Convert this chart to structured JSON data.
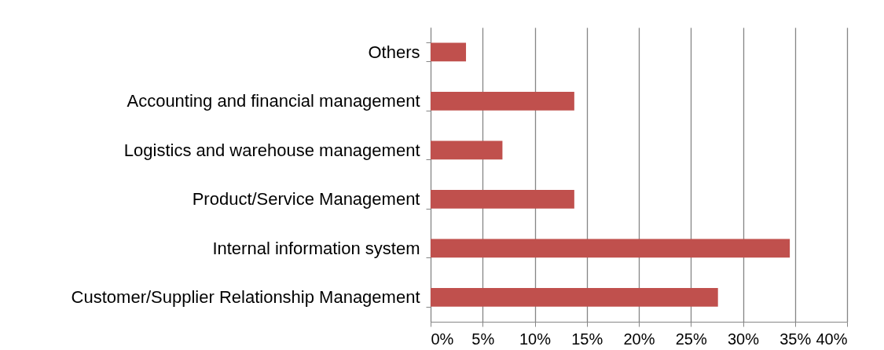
{
  "chart_data": {
    "type": "bar",
    "orientation": "horizontal",
    "categories": [
      "Others",
      "Accounting and financial management",
      "Logistics and warehouse management",
      "Product/Service Management",
      "Internal information system",
      "Customer/Supplier Relationship Management"
    ],
    "values": [
      3.4,
      13.8,
      6.9,
      13.8,
      34.5,
      27.6
    ],
    "color": "#c0504d",
    "xlim": [
      0,
      40
    ],
    "xticks": [
      {
        "value": 0,
        "label": "0%"
      },
      {
        "value": 5,
        "label": "5%"
      },
      {
        "value": 10,
        "label": "10%"
      },
      {
        "value": 15,
        "label": "15%"
      },
      {
        "value": 20,
        "label": "20%"
      },
      {
        "value": 25,
        "label": "25%"
      },
      {
        "value": 30,
        "label": "30%"
      },
      {
        "value": 35,
        "label": "35%"
      },
      {
        "value": 40,
        "label": "40%"
      }
    ],
    "grid": "x"
  }
}
